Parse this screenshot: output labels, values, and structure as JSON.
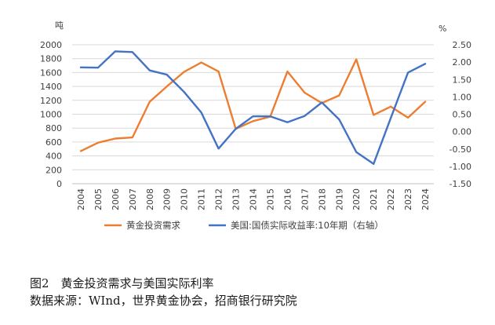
{
  "chart_data": {
    "type": "line",
    "categories": [
      "2004",
      "2005",
      "2006",
      "2007",
      "2008",
      "2009",
      "2010",
      "2011",
      "2012",
      "2013",
      "2014",
      "2015",
      "2016",
      "2017",
      "2018",
      "2019",
      "2020",
      "2021",
      "2022",
      "2023",
      "2024"
    ],
    "left_axis": {
      "unit_label": "吨",
      "ylim": [
        0,
        2000
      ],
      "ticks": [
        "0",
        "200",
        "400",
        "600",
        "800",
        "1000",
        "1200",
        "1400",
        "1600",
        "1800",
        "2000"
      ]
    },
    "right_axis": {
      "unit_label": "%",
      "ylim": [
        -1.5,
        2.5
      ],
      "ticks": [
        "-1.50",
        "-1.00",
        "-0.50",
        "0.00",
        "0.50",
        "1.00",
        "1.50",
        "2.00",
        "2.50"
      ]
    },
    "series": [
      {
        "name": "黄金投资需求",
        "axis": "left",
        "color": "#ED7D31",
        "values": [
          470,
          590,
          650,
          665,
          1180,
          1400,
          1610,
          1745,
          1615,
          790,
          900,
          965,
          1615,
          1310,
          1160,
          1270,
          1790,
          990,
          1110,
          950,
          1180
        ]
      },
      {
        "name": "美国:国债实际收益率:10年期（右轴）",
        "axis": "right",
        "color": "#4472C4",
        "values": [
          1.85,
          1.84,
          2.31,
          2.29,
          1.76,
          1.64,
          1.14,
          0.55,
          -0.49,
          0.08,
          0.44,
          0.44,
          0.27,
          0.45,
          0.84,
          0.35,
          -0.59,
          -0.93,
          0.39,
          1.7,
          1.95
        ]
      }
    ],
    "legend_position": "bottom",
    "grid": "horizontal"
  },
  "caption": {
    "title": "图2　黄金投资需求与美国实际利率",
    "source": "数据来源：WInd，世界黄金协会，招商银行研究院"
  }
}
